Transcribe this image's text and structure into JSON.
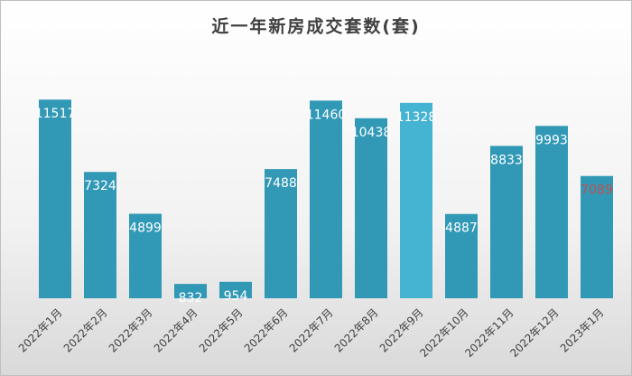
{
  "chart_data": {
    "type": "bar",
    "title": "近一年新房成交套数(套)",
    "categories": [
      "2022年1月",
      "2022年2月",
      "2022年3月",
      "2022年4月",
      "2022年5月",
      "2022年6月",
      "2022年7月",
      "2022年8月",
      "2022年9月",
      "2022年10月",
      "2022年11月",
      "2022年12月",
      "2023年1月"
    ],
    "values": [
      11517,
      7324,
      4899,
      832,
      954,
      7488,
      11460,
      10438,
      11328,
      4887,
      8833,
      9993,
      7089
    ],
    "colors": [
      "#3199b6",
      "#3199b6",
      "#3199b6",
      "#3199b6",
      "#3199b6",
      "#3199b6",
      "#3199b6",
      "#3199b6",
      "#45b3d2",
      "#3199b6",
      "#3199b6",
      "#3199b6",
      "#3199b6"
    ],
    "value_label_colors": [
      "#ffffff",
      "#ffffff",
      "#ffffff",
      "#ffffff",
      "#ffffff",
      "#ffffff",
      "#ffffff",
      "#ffffff",
      "#ffffff",
      "#ffffff",
      "#ffffff",
      "#ffffff",
      "#c0504d"
    ],
    "ylim": [
      0,
      12000
    ]
  }
}
